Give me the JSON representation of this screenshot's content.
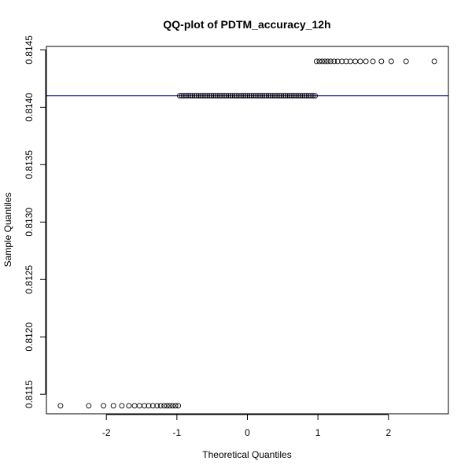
{
  "chart_data": {
    "type": "scatter",
    "title": "QQ-plot of PDTM_accuracy_12h",
    "xlabel": "Theoretical Quantiles",
    "ylabel": "Sample Quantiles",
    "xlim": [
      -2.85,
      2.85
    ],
    "ylim": [
      0.81133,
      0.81453
    ],
    "xticks": [
      -2,
      -1,
      0,
      1,
      2
    ],
    "xtick_labels": [
      "-2",
      "-1",
      "0",
      "1",
      "2"
    ],
    "yticks": [
      0.8115,
      0.812,
      0.8125,
      0.813,
      0.8135,
      0.814,
      0.8145
    ],
    "ytick_labels": [
      "0.8115",
      "0.8120",
      "0.8125",
      "0.8130",
      "0.8135",
      "0.8140",
      "0.8145"
    ],
    "grid": false,
    "colors": {
      "points": "#000000",
      "reference_line": "#00008b"
    },
    "reference_line": {
      "slope": 0,
      "intercept": 0.8141
    },
    "series": [
      {
        "values_y": 0.8114,
        "x": [
          -2.65,
          -2.25,
          -2.04,
          -1.9,
          -1.78,
          -1.68,
          -1.6,
          -1.53,
          -1.46,
          -1.4,
          -1.34,
          -1.28,
          -1.23,
          -1.18,
          -1.14,
          -1.1,
          -1.06,
          -1.02,
          -0.98
        ]
      },
      {
        "values_y": 0.8141,
        "x": [
          -0.96,
          -0.93,
          -0.9,
          -0.87,
          -0.84,
          -0.81,
          -0.78,
          -0.75,
          -0.72,
          -0.69,
          -0.66,
          -0.63,
          -0.6,
          -0.57,
          -0.54,
          -0.51,
          -0.48,
          -0.45,
          -0.42,
          -0.39,
          -0.36,
          -0.33,
          -0.3,
          -0.27,
          -0.24,
          -0.21,
          -0.18,
          -0.15,
          -0.12,
          -0.09,
          -0.06,
          -0.03,
          0.0,
          0.03,
          0.06,
          0.09,
          0.12,
          0.15,
          0.18,
          0.21,
          0.24,
          0.27,
          0.3,
          0.33,
          0.36,
          0.39,
          0.42,
          0.45,
          0.48,
          0.51,
          0.54,
          0.57,
          0.6,
          0.63,
          0.66,
          0.69,
          0.72,
          0.75,
          0.78,
          0.81,
          0.84,
          0.87,
          0.9,
          0.93,
          0.96
        ]
      },
      {
        "values_y": 0.8144,
        "x": [
          0.98,
          1.02,
          1.06,
          1.1,
          1.14,
          1.18,
          1.23,
          1.28,
          1.34,
          1.4,
          1.46,
          1.53,
          1.6,
          1.68,
          1.78,
          1.9,
          2.04,
          2.25,
          2.65
        ]
      }
    ]
  }
}
